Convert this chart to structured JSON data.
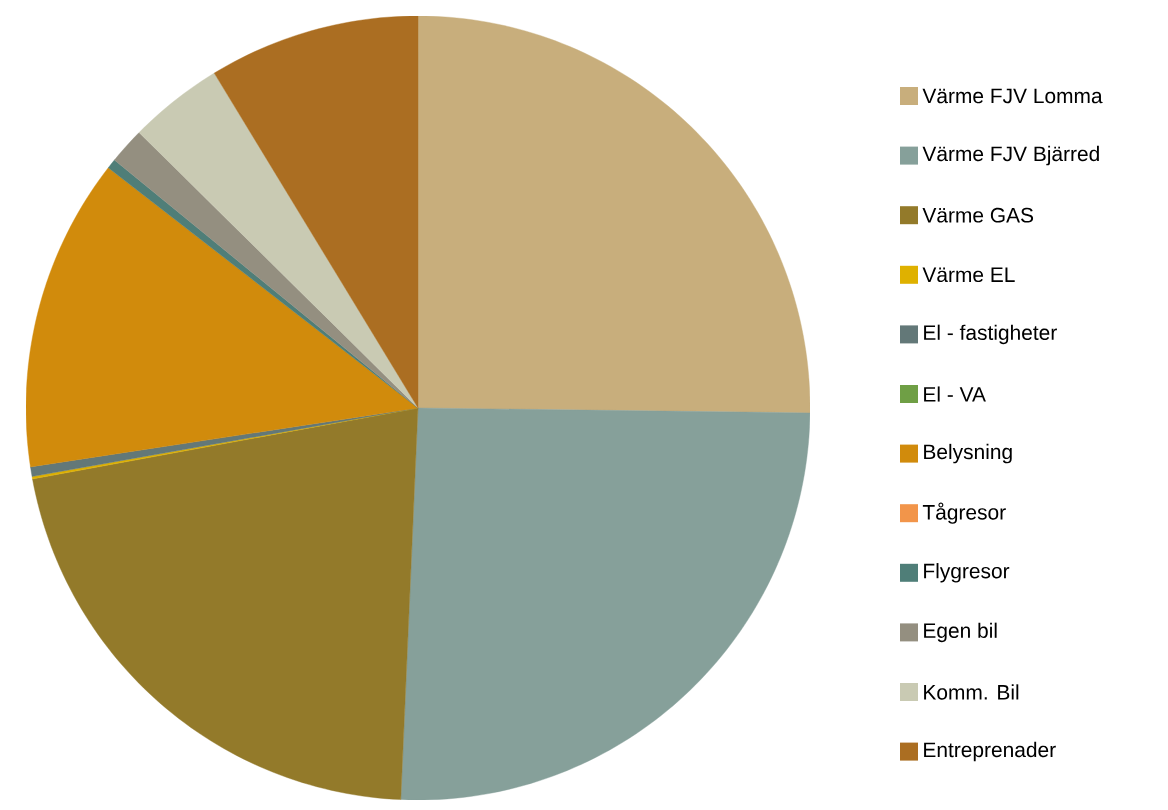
{
  "chart_data": {
    "type": "pie",
    "categories": [
      "Värme FJV Lomma",
      "Värme FJV Bjärred",
      "Värme GAS",
      "Värme EL",
      "El - fastigheter",
      "El - VA",
      "Belysning",
      "Tågresor",
      "Flygresor",
      "Egen bil",
      "Komm. Bil",
      "Entreprenader"
    ],
    "values": [
      25.2,
      25.5,
      21.4,
      0.1,
      0.4,
      0,
      12.9,
      0,
      0.4,
      1.5,
      3.9,
      8.7
    ],
    "colors": [
      "#c8ae7c",
      "#86a09a",
      "#937a2a",
      "#dfb100",
      "#637878",
      "#6f9f45",
      "#d18b0c",
      "#f2954a",
      "#4f7e78",
      "#948f80",
      "#c9cab3",
      "#ab6e22"
    ],
    "legend": "right"
  }
}
